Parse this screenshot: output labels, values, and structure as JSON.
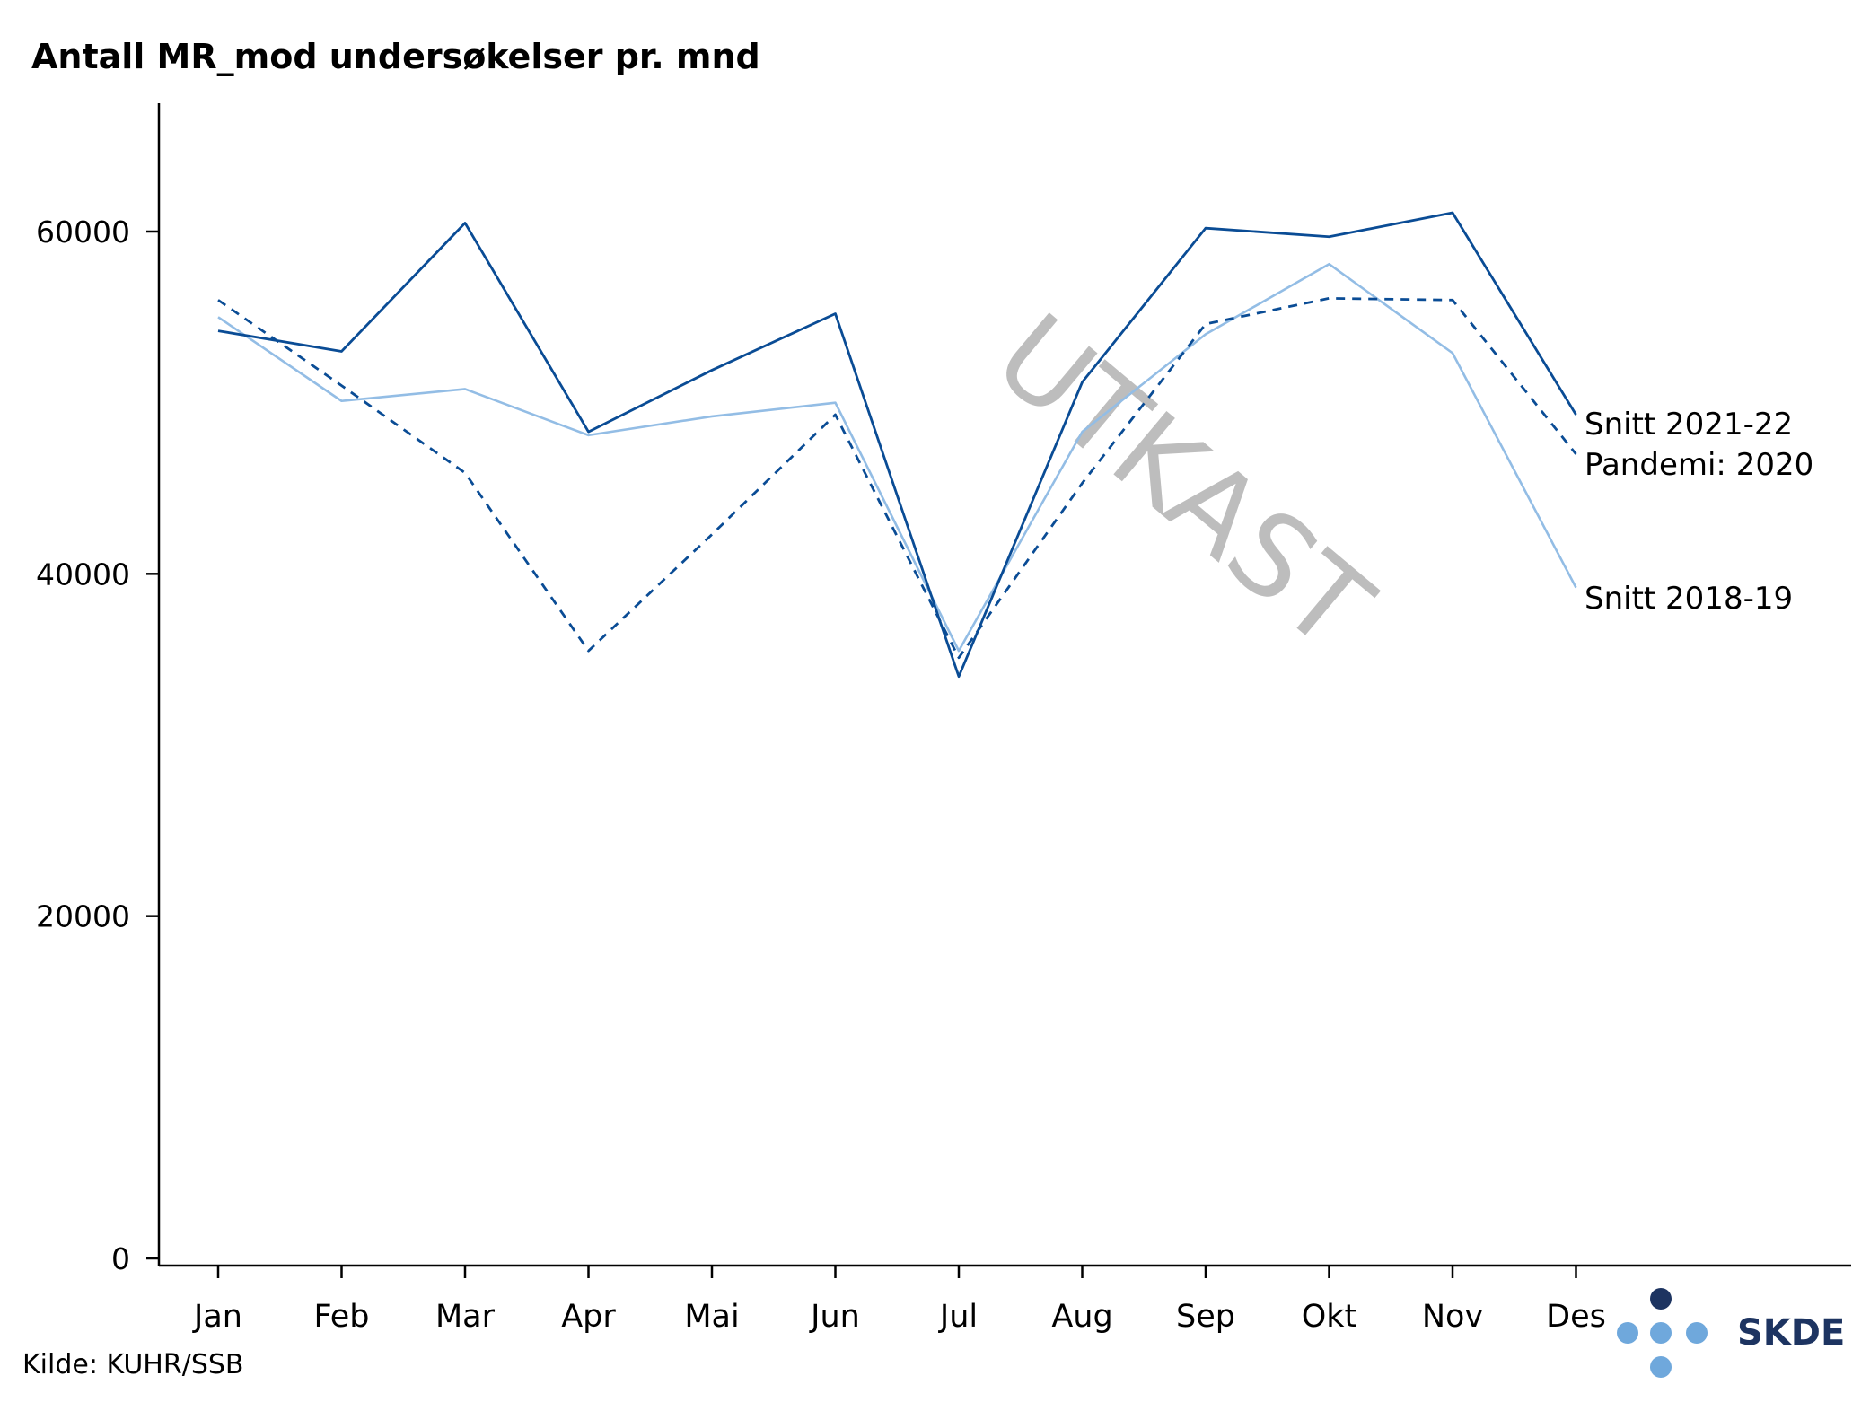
{
  "chart_data": {
    "type": "line",
    "title": "Antall MR_mod undersøkelser pr. mnd",
    "xlabel": "",
    "ylabel": "",
    "categories": [
      "Jan",
      "Feb",
      "Mar",
      "Apr",
      "Mai",
      "Jun",
      "Jul",
      "Aug",
      "Sep",
      "Okt",
      "Nov",
      "Des"
    ],
    "ylim": [
      0,
      67500
    ],
    "yticks": [
      0,
      20000,
      40000,
      60000
    ],
    "grid": false,
    "series": [
      {
        "name": "Snitt 2021-22",
        "values": [
          54200,
          53000,
          60500,
          48300,
          51900,
          55200,
          34000,
          51200,
          60200,
          59700,
          61100,
          49300
        ],
        "color": "#0a4c95",
        "dash": "solid"
      },
      {
        "name": "Pandemi: 2020",
        "values": [
          56000,
          51000,
          45900,
          35500,
          42300,
          49300,
          35100,
          45300,
          54600,
          56100,
          56000,
          47000
        ],
        "color": "#0a4c95",
        "dash": "dashed"
      },
      {
        "name": "Snitt 2018-19",
        "values": [
          55000,
          50100,
          50800,
          48100,
          49200,
          50000,
          35500,
          48300,
          54000,
          58100,
          52900,
          39200
        ],
        "color": "#93bde5",
        "dash": "solid"
      }
    ],
    "watermark": "UTKAST",
    "source": "Kilde: KUHR/SSB"
  },
  "logo": {
    "text": "SKDE",
    "dark_color": "#1d3461",
    "light_color": "#6fa8dc"
  }
}
